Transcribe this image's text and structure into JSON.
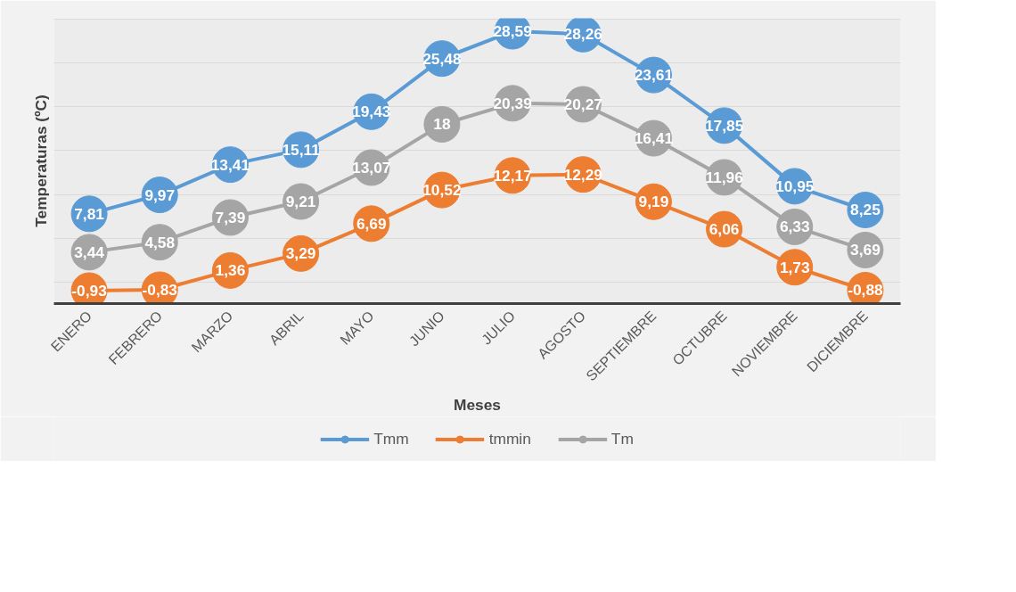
{
  "chart_data": {
    "type": "line",
    "xlabel": "Meses",
    "ylabel": "Temperaturas (ºC)",
    "categories": [
      "ENERO",
      "FEBRERO",
      "MARZO",
      "ABRIL",
      "MAYO",
      "JUNIO",
      "JULIO",
      "AGOSTO",
      "SEPTIEMBRE",
      "OCTUBRE",
      "NOVIEMBRE",
      "DICIEMBRE"
    ],
    "series": [
      {
        "name": "Tmm",
        "color": "#5b9bd5",
        "values": [
          7.81,
          9.97,
          13.41,
          15.11,
          19.43,
          25.48,
          28.59,
          28.26,
          23.61,
          17.85,
          10.95,
          8.25
        ],
        "value_labels": [
          "7,81",
          "9,97",
          "13,41",
          "15,11",
          "19,43",
          "25,48",
          "28,59",
          "28,26",
          "23,61",
          "17,85",
          "10,95",
          "8,25"
        ]
      },
      {
        "name": "tmmin",
        "color": "#ed7d31",
        "values": [
          -0.93,
          -0.83,
          1.36,
          3.29,
          6.69,
          10.52,
          12.17,
          12.29,
          9.19,
          6.06,
          1.73,
          -0.88
        ],
        "value_labels": [
          "-0,93",
          "-0,83",
          "1,36",
          "3,29",
          "6,69",
          "10,52",
          "12,17",
          "12,29",
          "9,19",
          "6,06",
          "1,73",
          "-0,88"
        ]
      },
      {
        "name": "Tm",
        "color": "#a5a5a5",
        "values": [
          3.44,
          4.58,
          7.39,
          9.21,
          13.07,
          18,
          20.39,
          20.27,
          16.41,
          11.96,
          6.33,
          3.69
        ],
        "value_labels": [
          "3,44",
          "4,58",
          "7,39",
          "9,21",
          "13,07",
          "18",
          "20,39",
          "20,27",
          "16,41",
          "11,96",
          "6,33",
          "3,69"
        ]
      }
    ],
    "tick_labels": "x",
    "grid": "y",
    "legend": "bottom",
    "marker": "circle",
    "line_style": "solid"
  }
}
